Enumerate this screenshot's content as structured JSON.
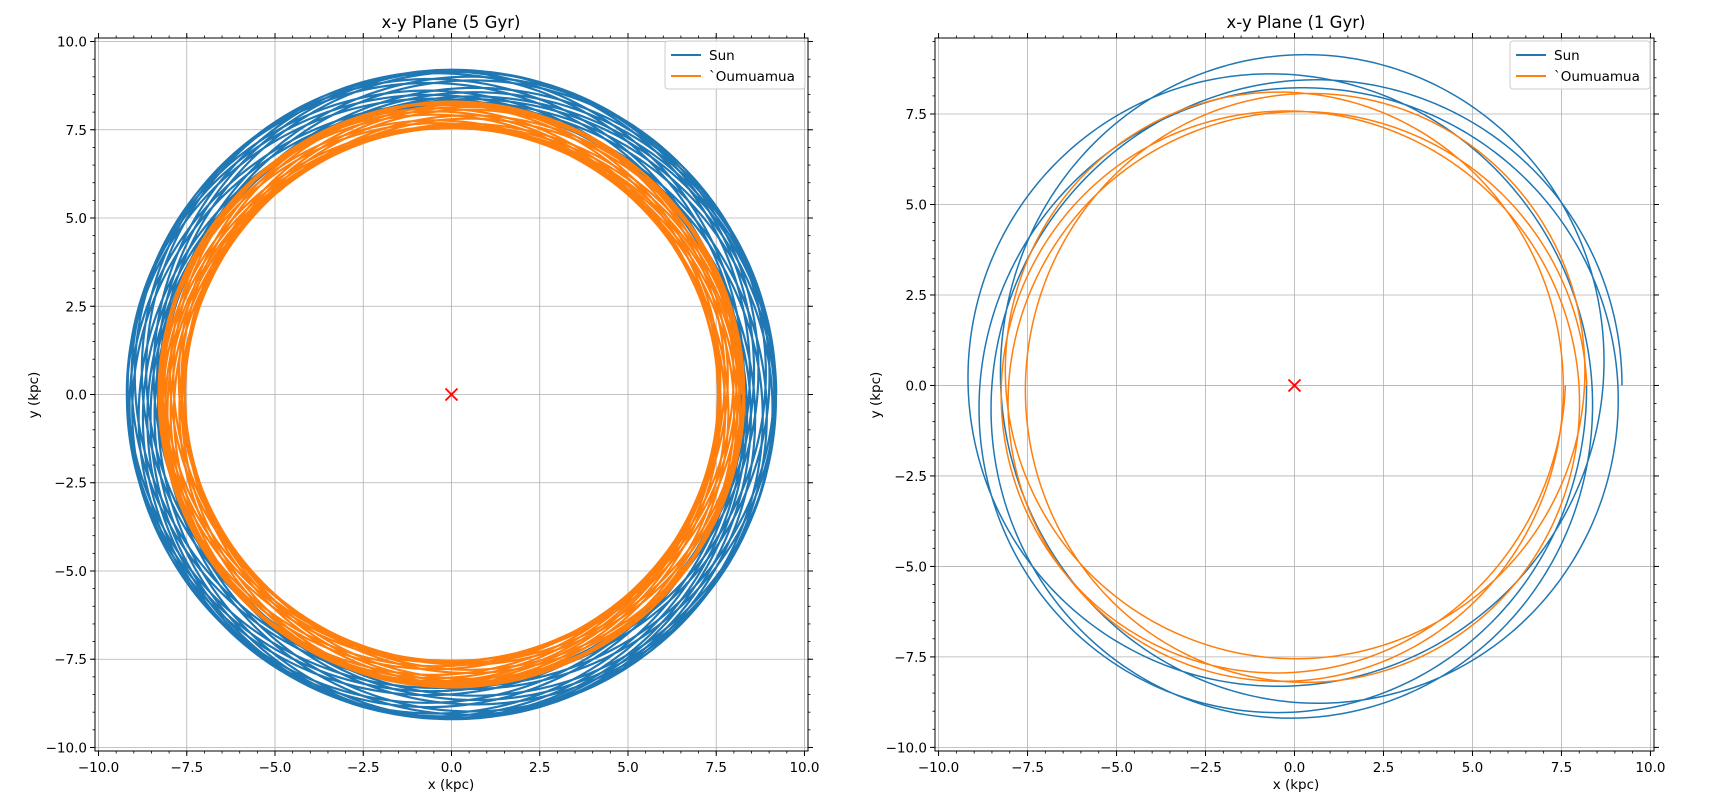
{
  "figure": {
    "description_free": true
  },
  "colors": {
    "sun": "#1f77b4",
    "oumuamua": "#ff7f0e",
    "center_marker": "#ff0000",
    "grid": "#b0b0b0"
  },
  "chart_data": [
    {
      "type": "line",
      "title": "x-y Plane (5 Gyr)",
      "xlabel": "x (kpc)",
      "ylabel": "y (kpc)",
      "xlim": [
        -10.1,
        10.1
      ],
      "ylim": [
        -10.1,
        10.1
      ],
      "xticks": [
        -10.0,
        -7.5,
        -5.0,
        -2.5,
        0.0,
        2.5,
        5.0,
        7.5,
        10.0
      ],
      "yticks": [
        -10.0,
        -7.5,
        -5.0,
        -2.5,
        0.0,
        2.5,
        5.0,
        7.5,
        10.0
      ],
      "xtick_labels": [
        "−10.0",
        "−7.5",
        "−5.0",
        "−2.5",
        "0.0",
        "2.5",
        "5.0",
        "7.5",
        "10.0"
      ],
      "ytick_labels": [
        "−10.0",
        "−7.5",
        "−5.0",
        "−2.5",
        "0.0",
        "2.5",
        "5.0",
        "7.5",
        "10.0"
      ],
      "grid": true,
      "legend": "top-right",
      "center_marker": {
        "x": 0.0,
        "y": 0.0,
        "symbol": "x"
      },
      "series": [
        {
          "name": "Sun",
          "color_key": "sun",
          "orbit": {
            "r_min": 8.2,
            "r_max": 9.2,
            "n_loops": 20,
            "precession_per_loop": 0.62,
            "radial_cycles_per_loop": 1.37
          },
          "line_width": 2.2
        },
        {
          "name": "`Oumuamua",
          "color_key": "oumuamua",
          "orbit": {
            "r_min": 7.55,
            "r_max": 8.3,
            "n_loops": 20,
            "precession_per_loop": 0.41,
            "radial_cycles_per_loop": 1.37
          },
          "line_width": 2.2
        }
      ]
    },
    {
      "type": "line",
      "title": "x-y Plane (1 Gyr)",
      "xlabel": "x (kpc)",
      "ylabel": "y (kpc)",
      "xlim": [
        -10.1,
        10.1
      ],
      "ylim": [
        -10.1,
        9.6
      ],
      "xticks": [
        -10.0,
        -7.5,
        -5.0,
        -2.5,
        0.0,
        2.5,
        5.0,
        7.5,
        10.0
      ],
      "yticks": [
        -10.0,
        -7.5,
        -5.0,
        -2.5,
        0.0,
        2.5,
        5.0,
        7.5
      ],
      "xtick_labels": [
        "−10.0",
        "−7.5",
        "−5.0",
        "−2.5",
        "0.0",
        "2.5",
        "5.0",
        "7.5",
        "10.0"
      ],
      "ytick_labels": [
        "−10.0",
        "−7.5",
        "−5.0",
        "−2.5",
        "0.0",
        "2.5",
        "5.0",
        "7.5"
      ],
      "grid": true,
      "legend": "top-right",
      "center_marker": {
        "x": 0.0,
        "y": 0.0,
        "symbol": "x"
      },
      "series": [
        {
          "name": "Sun",
          "color_key": "sun",
          "orbit": {
            "r_min": 8.2,
            "r_max": 9.2,
            "n_loops": 4,
            "precession_per_loop": 0.62,
            "radial_cycles_per_loop": 1.37
          },
          "line_width": 1.5
        },
        {
          "name": "`Oumuamua",
          "color_key": "oumuamua",
          "orbit": {
            "r_min": 7.55,
            "r_max": 8.3,
            "n_loops": 4,
            "precession_per_loop": 0.41,
            "radial_cycles_per_loop": 1.37
          },
          "line_width": 1.5
        }
      ]
    }
  ]
}
